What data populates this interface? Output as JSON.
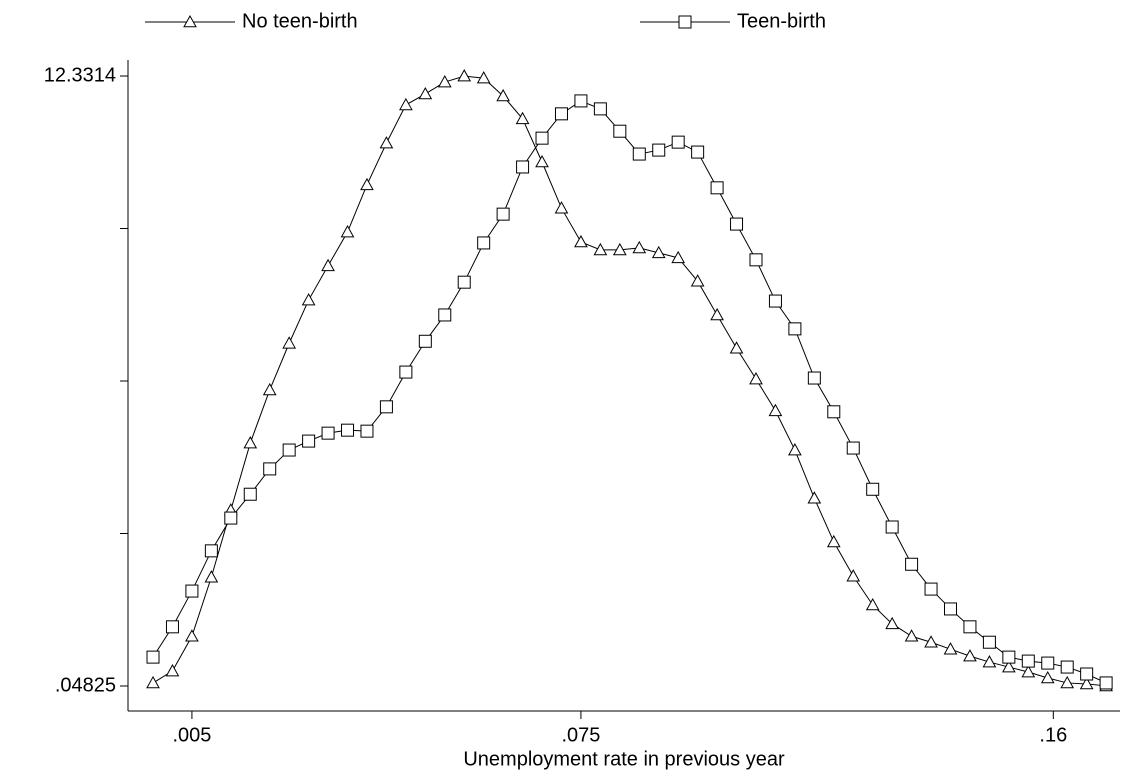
{
  "chart_data": {
    "type": "line",
    "x_label": "Unemployment rate in previous year",
    "x": [
      -0.002,
      0.0015,
      0.005,
      0.0085,
      0.012,
      0.0155,
      0.019,
      0.0225,
      0.026,
      0.0295,
      0.033,
      0.0365,
      0.04,
      0.0435,
      0.047,
      0.0505,
      0.054,
      0.0575,
      0.061,
      0.0645,
      0.068,
      0.0715,
      0.075,
      0.0785,
      0.082,
      0.0855,
      0.089,
      0.0925,
      0.096,
      0.0995,
      0.103,
      0.1065,
      0.11,
      0.1135,
      0.117,
      0.1205,
      0.124,
      0.1275,
      0.131,
      0.1345,
      0.138,
      0.1415,
      0.145,
      0.1485,
      0.152,
      0.1555,
      0.159,
      0.1625,
      0.166,
      0.1695
    ],
    "series": [
      {
        "name": "No teen-birth",
        "color": "#000000",
        "marker": "triangle",
        "values": [
          0.11,
          0.35,
          1.05,
          2.24,
          3.59,
          4.94,
          6.01,
          6.95,
          7.82,
          8.51,
          9.19,
          10.14,
          10.98,
          11.75,
          11.97,
          12.21,
          12.33,
          12.29,
          11.93,
          11.47,
          10.6,
          9.67,
          8.99,
          8.83,
          8.83,
          8.87,
          8.77,
          8.67,
          8.2,
          7.52,
          6.85,
          6.23,
          5.59,
          4.8,
          3.83,
          2.95,
          2.26,
          1.68,
          1.3,
          1.05,
          0.93,
          0.79,
          0.65,
          0.53,
          0.43,
          0.33,
          0.21,
          0.11,
          0.09,
          0.05
        ]
      },
      {
        "name": "Teen-birth",
        "color": "#000000",
        "marker": "square",
        "values": [
          0.63,
          1.24,
          1.96,
          2.77,
          3.43,
          3.91,
          4.42,
          4.8,
          4.98,
          5.14,
          5.2,
          5.18,
          5.67,
          6.37,
          6.99,
          7.52,
          8.18,
          8.97,
          9.55,
          10.5,
          11.08,
          11.57,
          11.83,
          11.67,
          11.22,
          10.76,
          10.84,
          11.0,
          10.8,
          10.08,
          9.35,
          8.63,
          7.8,
          7.24,
          6.25,
          5.57,
          4.84,
          4.01,
          3.25,
          2.5,
          2.0,
          1.6,
          1.24,
          0.93,
          0.63,
          0.55,
          0.51,
          0.43,
          0.29,
          0.11
        ]
      }
    ],
    "xlim": [
      -0.0065,
      0.172
    ],
    "xticks": [
      {
        "value": 0.005,
        "label": ".005"
      },
      {
        "value": 0.075,
        "label": ".075"
      },
      {
        "value": 0.16,
        "label": ".16"
      }
    ],
    "ylim": [
      -0.455,
      12.654
    ],
    "yticks": [
      {
        "value": 0.04825,
        "label": ".04825"
      },
      {
        "value": 3.11904,
        "label": null
      },
      {
        "value": 6.18983,
        "label": null
      },
      {
        "value": 9.26061,
        "label": null
      },
      12.3314
    ],
    "grid": false,
    "legend": "top"
  }
}
